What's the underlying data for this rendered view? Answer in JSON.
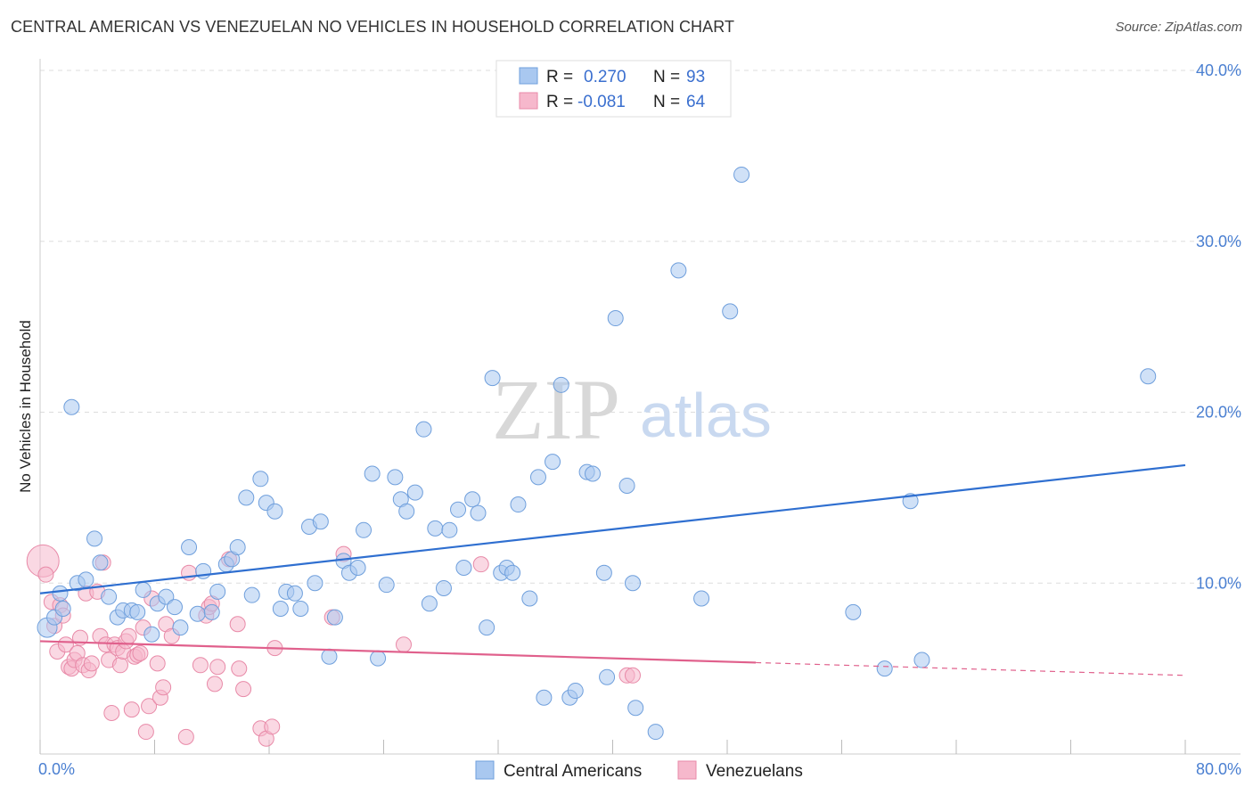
{
  "header": {
    "title": "CENTRAL AMERICAN VS VENEZUELAN NO VEHICLES IN HOUSEHOLD CORRELATION CHART",
    "source": "Source: ZipAtlas.com"
  },
  "watermark": {
    "zip": "ZIP",
    "atlas": "atlas"
  },
  "legend": {
    "rows": [
      {
        "r_label": "R =",
        "r_value": "0.270",
        "n_label": "N =",
        "n_value": "93",
        "color": "#a9c8f0"
      },
      {
        "r_label": "R =",
        "r_value": "-0.081",
        "n_label": "N =",
        "n_value": "64",
        "color": "#f6b8cc"
      }
    ]
  },
  "bottom_legend": [
    {
      "label": "Central Americans",
      "color": "#a9c8f0"
    },
    {
      "label": "Venezuelans",
      "color": "#f6b8cc"
    }
  ],
  "colors": {
    "blue_fill": "#a9c8f0",
    "blue_stroke": "#6f9fdc",
    "blue_line": "#2f6fd0",
    "pink_fill": "#f6b8cc",
    "pink_stroke": "#e88aa8",
    "pink_line": "#e0608c",
    "grid": "#dddddd",
    "tick_text": "#4a7fd1"
  },
  "chart_data": {
    "type": "scatter",
    "title": "CENTRAL AMERICAN VS VENEZUELAN NO VEHICLES IN HOUSEHOLD CORRELATION CHART",
    "xlabel": "",
    "ylabel": "No Vehicles in Household",
    "xlim": [
      0,
      80
    ],
    "ylim": [
      0,
      40
    ],
    "x_tick_labels": [
      "0.0%",
      "80.0%"
    ],
    "y_ticks": [
      10,
      20,
      30,
      40
    ],
    "y_tick_labels": [
      "10.0%",
      "20.0%",
      "30.0%",
      "40.0%"
    ],
    "grid": true,
    "legend_position": "top-center",
    "series": [
      {
        "name": "Central Americans",
        "r": 0.27,
        "n": 93,
        "trend": {
          "x0": 0,
          "y0": 9.4,
          "x1": 80,
          "y1": 16.9
        },
        "points": [
          [
            0.5,
            7.4,
            2
          ],
          [
            1.0,
            8.0,
            1
          ],
          [
            1.4,
            9.4,
            1
          ],
          [
            1.6,
            8.5,
            1
          ],
          [
            2.2,
            20.3,
            1
          ],
          [
            2.6,
            10.0,
            1
          ],
          [
            3.2,
            10.2,
            1
          ],
          [
            3.8,
            12.6,
            1
          ],
          [
            4.2,
            11.2,
            1
          ],
          [
            4.8,
            9.2,
            1
          ],
          [
            5.4,
            8.0,
            1
          ],
          [
            5.8,
            8.4,
            1
          ],
          [
            6.4,
            8.4,
            1
          ],
          [
            6.8,
            8.3,
            1
          ],
          [
            7.2,
            9.6,
            1
          ],
          [
            7.8,
            7.0,
            1
          ],
          [
            8.2,
            8.8,
            1
          ],
          [
            8.8,
            9.2,
            1
          ],
          [
            9.4,
            8.6,
            1
          ],
          [
            9.8,
            7.4,
            1
          ],
          [
            10.4,
            12.1,
            1
          ],
          [
            11.0,
            8.2,
            1
          ],
          [
            11.4,
            10.7,
            1
          ],
          [
            12.0,
            8.3,
            1
          ],
          [
            12.4,
            9.5,
            1
          ],
          [
            13.0,
            11.1,
            1
          ],
          [
            13.4,
            11.4,
            1
          ],
          [
            13.8,
            12.1,
            1
          ],
          [
            14.4,
            15.0,
            1
          ],
          [
            14.8,
            9.3,
            1
          ],
          [
            15.4,
            16.1,
            1
          ],
          [
            15.8,
            14.7,
            1
          ],
          [
            16.4,
            14.2,
            1
          ],
          [
            16.8,
            8.5,
            1
          ],
          [
            17.2,
            9.5,
            1
          ],
          [
            17.8,
            9.4,
            1
          ],
          [
            18.2,
            8.5,
            1
          ],
          [
            18.8,
            13.3,
            1
          ],
          [
            19.2,
            10.0,
            1
          ],
          [
            19.6,
            13.6,
            1
          ],
          [
            20.2,
            5.7,
            1
          ],
          [
            20.6,
            8.0,
            1
          ],
          [
            21.2,
            11.3,
            1
          ],
          [
            21.6,
            10.6,
            1
          ],
          [
            22.2,
            10.9,
            1
          ],
          [
            22.6,
            13.1,
            1
          ],
          [
            23.2,
            16.4,
            1
          ],
          [
            23.6,
            5.6,
            1
          ],
          [
            24.2,
            9.9,
            1
          ],
          [
            24.8,
            16.2,
            1
          ],
          [
            25.2,
            14.9,
            1
          ],
          [
            25.6,
            14.2,
            1
          ],
          [
            26.2,
            15.3,
            1
          ],
          [
            26.8,
            19.0,
            1
          ],
          [
            27.2,
            8.8,
            1
          ],
          [
            27.6,
            13.2,
            1
          ],
          [
            28.2,
            9.7,
            1
          ],
          [
            28.6,
            13.1,
            1
          ],
          [
            29.2,
            14.3,
            1
          ],
          [
            29.6,
            10.9,
            1
          ],
          [
            30.2,
            14.9,
            1
          ],
          [
            30.6,
            14.1,
            1
          ],
          [
            31.2,
            7.4,
            1
          ],
          [
            31.6,
            22.0,
            1
          ],
          [
            32.2,
            10.6,
            1
          ],
          [
            32.6,
            10.9,
            1
          ],
          [
            33.0,
            10.6,
            1
          ],
          [
            33.4,
            14.6,
            1
          ],
          [
            34.2,
            9.1,
            1
          ],
          [
            34.8,
            16.2,
            1
          ],
          [
            35.2,
            3.3,
            1
          ],
          [
            35.8,
            17.1,
            1
          ],
          [
            36.4,
            21.6,
            1
          ],
          [
            37.0,
            3.3,
            1
          ],
          [
            37.4,
            3.7,
            1
          ],
          [
            38.2,
            16.5,
            1
          ],
          [
            38.6,
            16.4,
            1
          ],
          [
            39.4,
            10.6,
            1
          ],
          [
            39.6,
            4.5,
            1
          ],
          [
            40.2,
            25.5,
            1
          ],
          [
            41.0,
            15.7,
            1
          ],
          [
            41.4,
            10.0,
            1
          ],
          [
            41.6,
            2.7,
            1
          ],
          [
            43.0,
            1.3,
            1
          ],
          [
            44.6,
            28.3,
            1
          ],
          [
            46.2,
            9.1,
            1
          ],
          [
            48.2,
            25.9,
            1
          ],
          [
            49.0,
            33.9,
            1
          ],
          [
            56.8,
            8.3,
            1
          ],
          [
            59.0,
            5.0,
            1
          ],
          [
            60.8,
            14.8,
            1
          ],
          [
            61.6,
            5.5,
            1
          ],
          [
            77.4,
            22.1,
            1
          ]
        ]
      },
      {
        "name": "Venezuelans",
        "r": -0.081,
        "n": 64,
        "trend": {
          "x0": 0,
          "y0": 6.6,
          "x1": 80,
          "y1": 4.6,
          "solid_until_x": 50
        },
        "points": [
          [
            0.2,
            11.3,
            3
          ],
          [
            0.4,
            10.5,
            1
          ],
          [
            0.8,
            8.9,
            1
          ],
          [
            1.0,
            7.5,
            1
          ],
          [
            1.2,
            6.0,
            1
          ],
          [
            1.4,
            8.7,
            1
          ],
          [
            1.6,
            8.1,
            1
          ],
          [
            1.8,
            6.4,
            1
          ],
          [
            2.0,
            5.1,
            1
          ],
          [
            2.2,
            5.0,
            1
          ],
          [
            2.4,
            5.5,
            1
          ],
          [
            2.6,
            5.9,
            1
          ],
          [
            2.8,
            6.8,
            1
          ],
          [
            3.0,
            5.2,
            1
          ],
          [
            3.2,
            9.4,
            1
          ],
          [
            3.4,
            4.9,
            1
          ],
          [
            3.6,
            5.3,
            1
          ],
          [
            4.0,
            9.5,
            1
          ],
          [
            4.2,
            6.9,
            1
          ],
          [
            4.4,
            11.2,
            1
          ],
          [
            4.6,
            6.4,
            1
          ],
          [
            4.8,
            5.5,
            1
          ],
          [
            5.0,
            2.4,
            1
          ],
          [
            5.2,
            6.4,
            1
          ],
          [
            5.4,
            6.2,
            1
          ],
          [
            5.6,
            5.2,
            1
          ],
          [
            5.8,
            6.0,
            1
          ],
          [
            6.0,
            6.6,
            1
          ],
          [
            6.2,
            6.9,
            1
          ],
          [
            6.4,
            2.6,
            1
          ],
          [
            6.6,
            5.7,
            1
          ],
          [
            6.8,
            5.8,
            1
          ],
          [
            7.0,
            5.9,
            1
          ],
          [
            7.2,
            7.4,
            1
          ],
          [
            7.4,
            1.3,
            1
          ],
          [
            7.6,
            2.8,
            1
          ],
          [
            7.8,
            9.1,
            1
          ],
          [
            8.2,
            5.3,
            1
          ],
          [
            8.4,
            3.3,
            1
          ],
          [
            8.6,
            3.9,
            1
          ],
          [
            8.8,
            7.6,
            1
          ],
          [
            9.2,
            6.9,
            1
          ],
          [
            10.2,
            1.0,
            1
          ],
          [
            10.4,
            10.6,
            1
          ],
          [
            11.2,
            5.2,
            1
          ],
          [
            11.6,
            8.1,
            1
          ],
          [
            11.8,
            8.6,
            1
          ],
          [
            12.0,
            8.8,
            1
          ],
          [
            12.2,
            4.1,
            1
          ],
          [
            12.4,
            5.1,
            1
          ],
          [
            13.2,
            11.4,
            1
          ],
          [
            13.8,
            7.6,
            1
          ],
          [
            13.9,
            5.0,
            1
          ],
          [
            14.2,
            3.8,
            1
          ],
          [
            15.4,
            1.5,
            1
          ],
          [
            15.8,
            0.9,
            1
          ],
          [
            16.2,
            1.6,
            1
          ],
          [
            16.4,
            6.2,
            1
          ],
          [
            20.4,
            8.0,
            1
          ],
          [
            21.2,
            11.7,
            1
          ],
          [
            25.4,
            6.4,
            1
          ],
          [
            30.8,
            11.1,
            1
          ],
          [
            41.0,
            4.6,
            1
          ],
          [
            41.4,
            4.6,
            1
          ]
        ]
      }
    ]
  }
}
